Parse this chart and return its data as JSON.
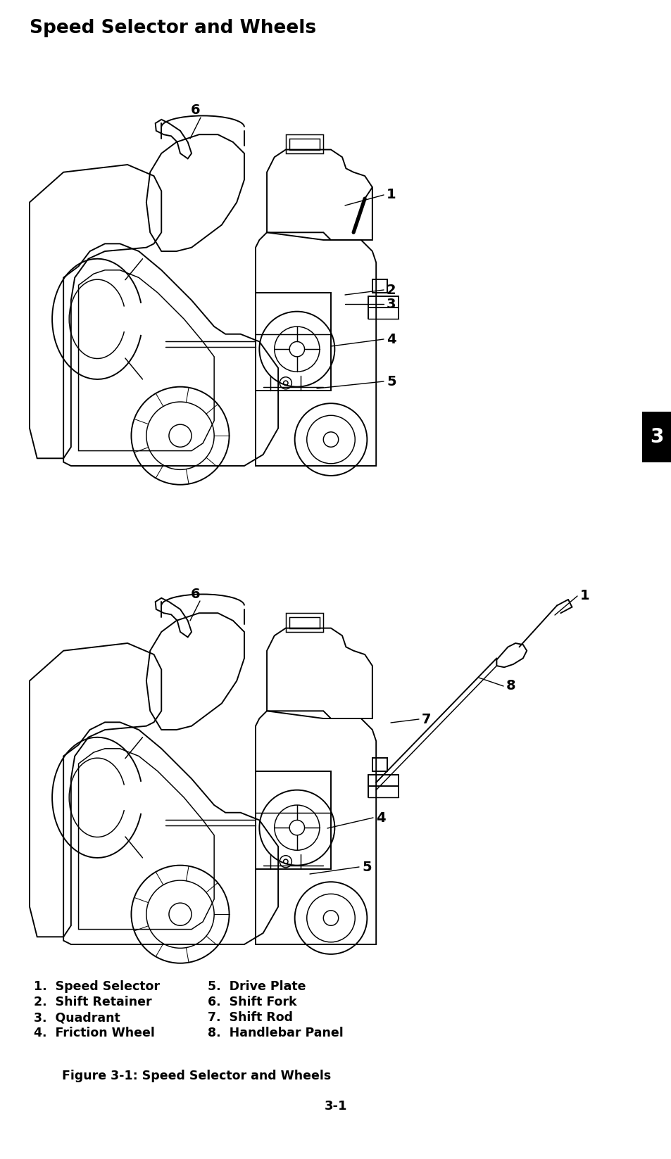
{
  "title": "Speed Selector and Wheels",
  "title_fontsize": 19,
  "title_fontweight": "bold",
  "tab_label": "3",
  "legend_items_left": [
    "1.  Speed Selector",
    "2.  Shift Retainer",
    "3.  Quadrant",
    "4.  Friction Wheel"
  ],
  "legend_items_right": [
    "5.  Drive Plate",
    "6.  Shift Fork",
    "7.  Shift Rod",
    "8.  Handlebar Panel"
  ],
  "figure_caption": "Figure 3-1: Speed Selector and Wheels",
  "page_number": "3-1",
  "bg_color": "#ffffff",
  "text_color": "#000000",
  "legend_fontsize": 12.5,
  "caption_fontsize": 12.5,
  "page_fontsize": 13
}
